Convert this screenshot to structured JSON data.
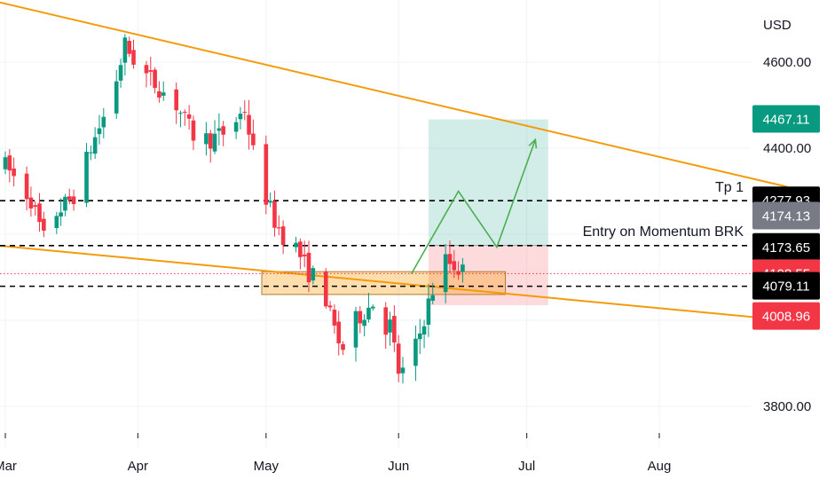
{
  "chart_data": {
    "type": "candlestick",
    "currency": "USD",
    "y_ticks": [
      "4600.00",
      "4400.00",
      "3800.00"
    ],
    "x_ticks": [
      "Mar",
      "Apr",
      "May",
      "Jun",
      "Jul",
      "Aug"
    ],
    "price_labels": [
      {
        "label": "4467.11",
        "value": 4467.11,
        "color": "#089981"
      },
      {
        "label": "4277.93",
        "value": 4277.93,
        "color": "#000000"
      },
      {
        "label": "4174.13",
        "value": 4174.13,
        "color": "#787b86"
      },
      {
        "label": "4173.65",
        "value": 4173.65,
        "color": "#000000"
      },
      {
        "label": "4108.55",
        "value": 4108.55,
        "color": "#f23645"
      },
      {
        "label": "4079.11",
        "value": 4079.11,
        "color": "#000000"
      },
      {
        "label": "4008.96",
        "value": 4008.96,
        "color": "#f23645"
      }
    ],
    "horizontal_levels": [
      4277.93,
      4173.65,
      4079.11
    ],
    "current_price": 4108.55,
    "annotations": {
      "tp1": "Tp 1",
      "entry": "Entry on Momentum BRK"
    },
    "trendlines": [
      {
        "from": [
          "2023-02-10",
          4780
        ],
        "to": [
          "2023-08-31",
          4310
        ]
      },
      {
        "from": [
          "2023-02-10",
          4190
        ],
        "to": [
          "2023-08-31",
          4000
        ]
      }
    ],
    "zones": {
      "demand_zone": {
        "from": "2023-04-30",
        "to": "2023-06-26",
        "low": 4060,
        "high": 4113
      },
      "target_zone": {
        "from": "2023-06-08",
        "to": "2023-07-06",
        "low": 4174,
        "high": 4467
      },
      "stop_zone": {
        "from": "2023-06-08",
        "to": "2023-07-06",
        "low": 4035,
        "high": 4174
      }
    },
    "projection_path": [
      [
        "2023-06-04",
        4108
      ],
      [
        "2023-06-15",
        4300
      ],
      [
        "2023-06-24",
        4170
      ],
      [
        "2023-07-03",
        4420
      ]
    ],
    "colors": {
      "up": "#089981",
      "down": "#f23645",
      "trend": "#f59a0a",
      "projection": "#4caf50"
    }
  }
}
